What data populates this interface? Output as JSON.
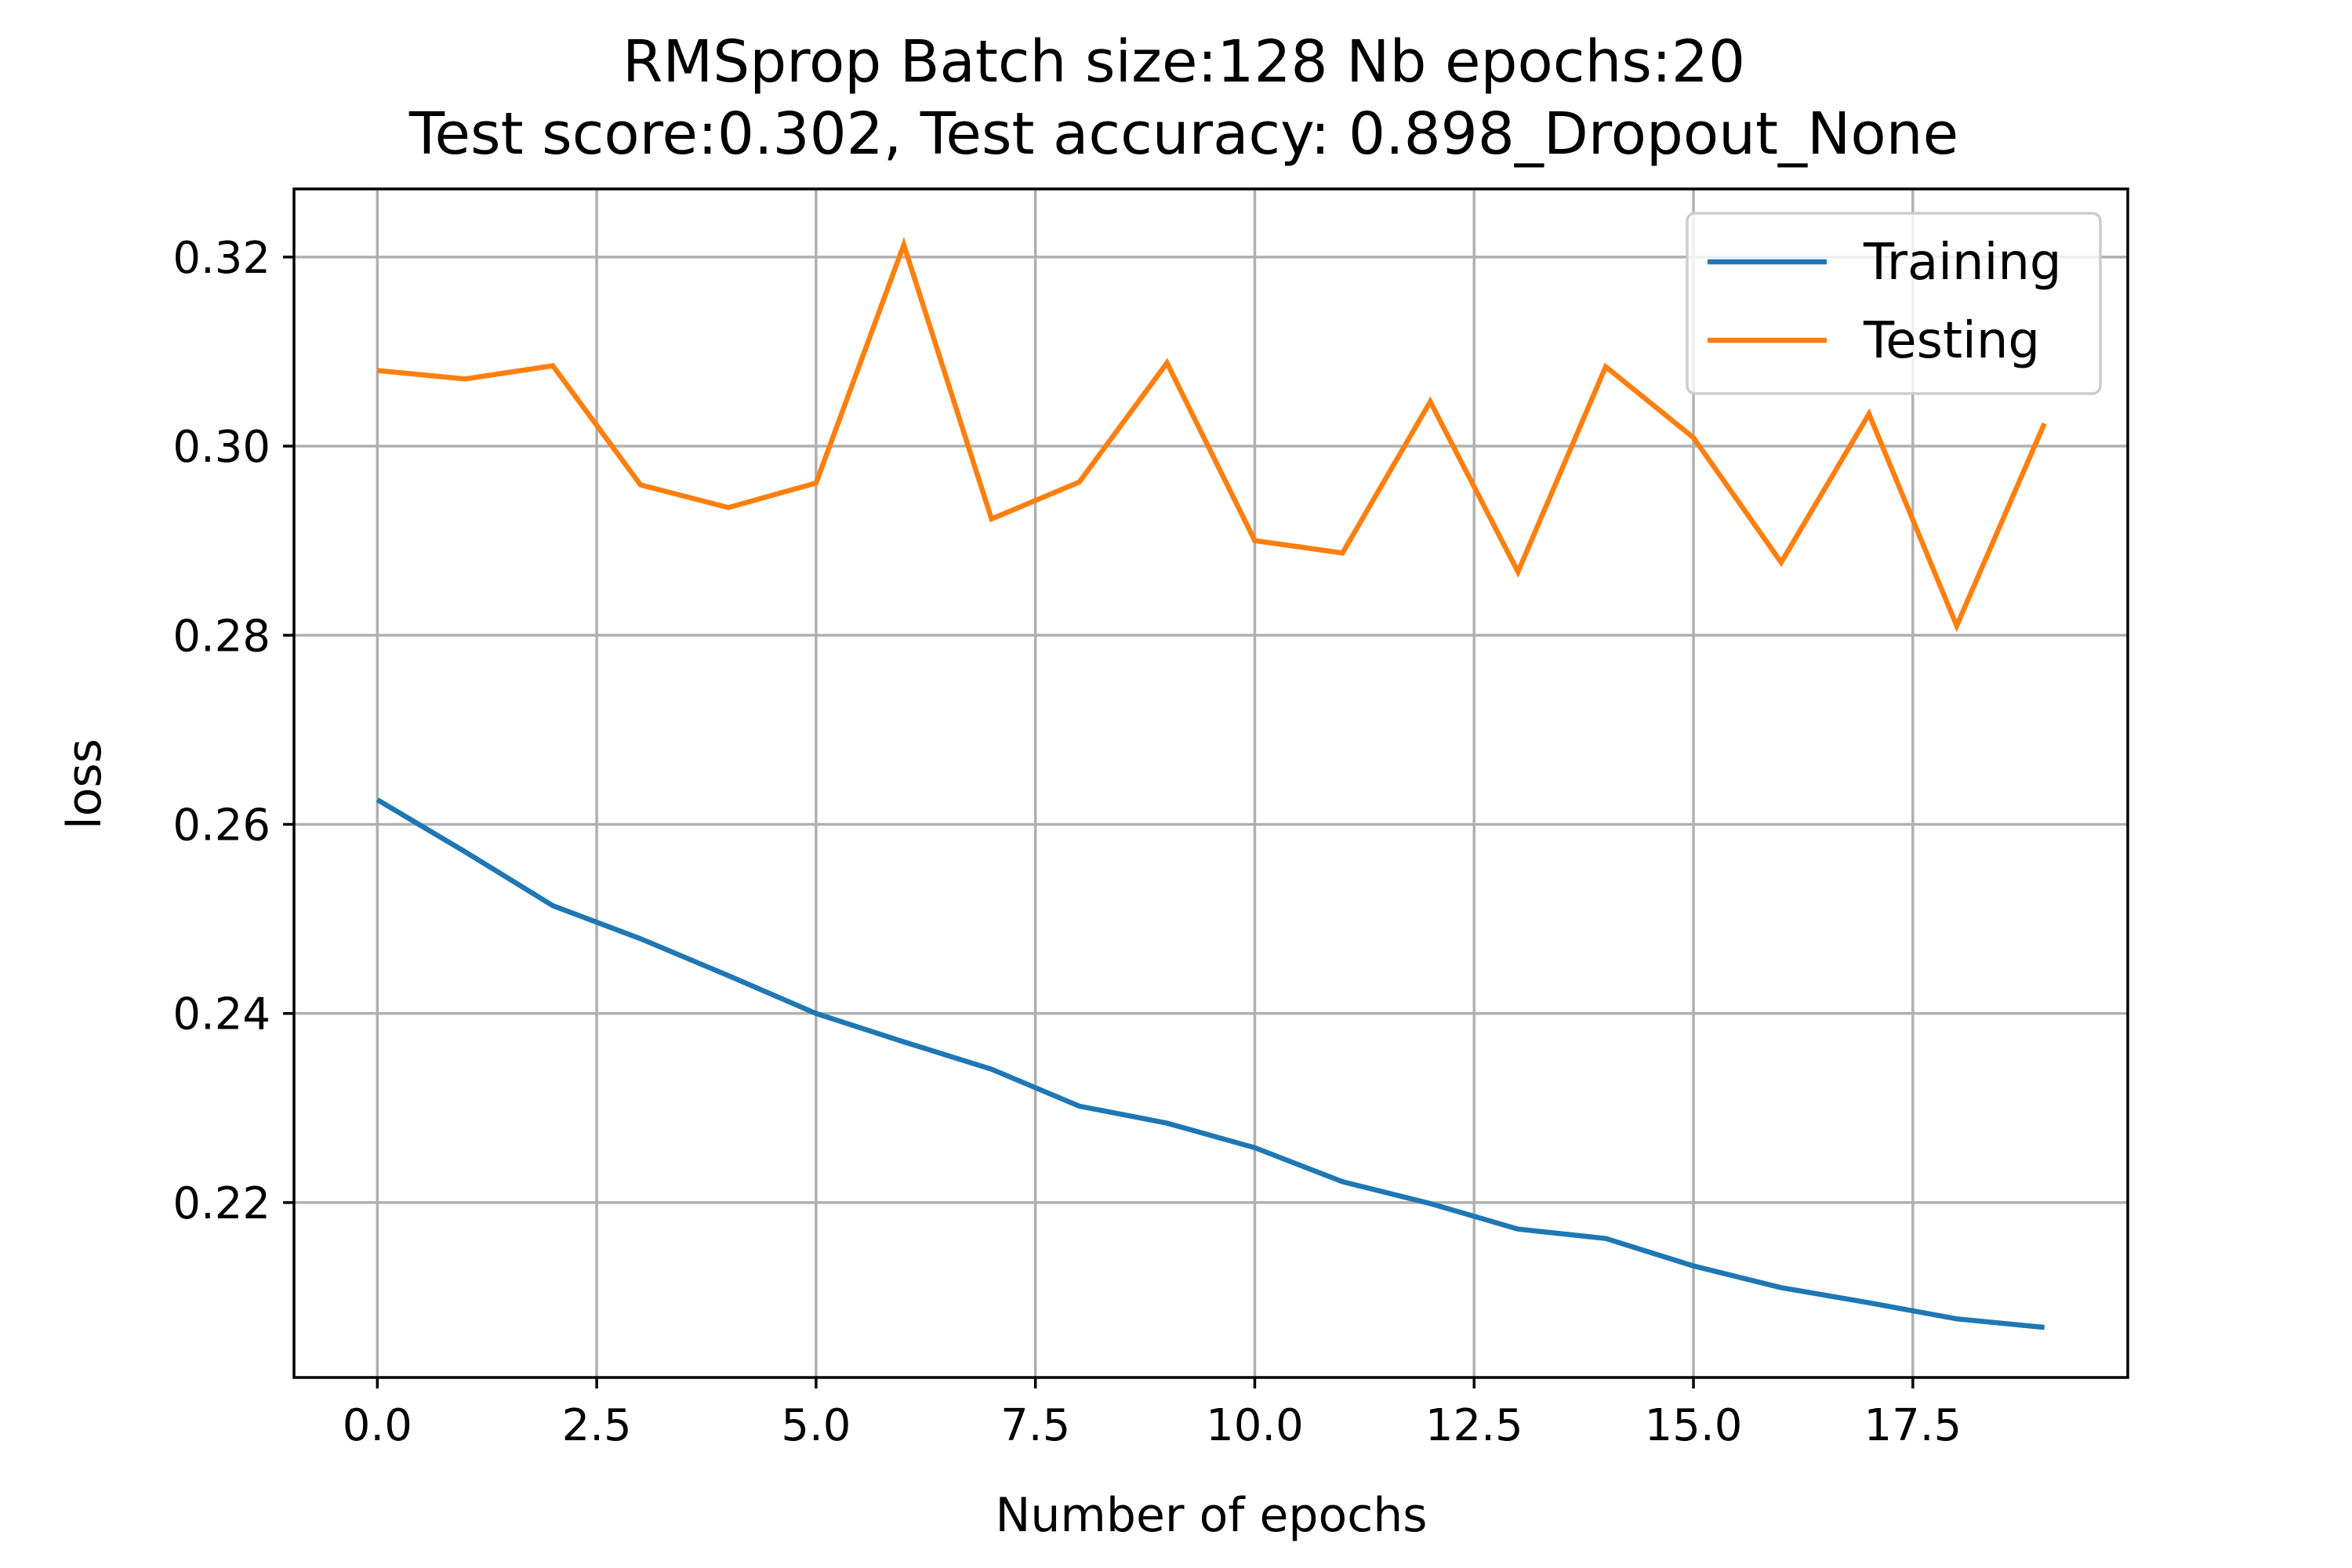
{
  "chart_data": {
    "type": "line",
    "title_line1": "RMSprop Batch size:128 Nb epochs:20",
    "title_line2": "Test score:0.302, Test accuracy: 0.898_Dropout_None",
    "xlabel": "Number of epochs",
    "ylabel": "loss",
    "xlim": [
      -0.95,
      19.95
    ],
    "ylim": [
      0.2015,
      0.3272
    ],
    "xticks": [
      0.0,
      2.5,
      5.0,
      7.5,
      10.0,
      12.5,
      15.0,
      17.5
    ],
    "xtick_labels": [
      "0.0",
      "2.5",
      "5.0",
      "7.5",
      "10.0",
      "12.5",
      "15.0",
      "17.5"
    ],
    "yticks": [
      0.22,
      0.24,
      0.26,
      0.28,
      0.3,
      0.32
    ],
    "ytick_labels": [
      "0.22",
      "0.24",
      "0.26",
      "0.28",
      "0.30",
      "0.32"
    ],
    "grid": true,
    "legend_position": "top-right",
    "x": [
      0,
      1,
      2,
      3,
      4,
      5,
      6,
      7,
      8,
      9,
      10,
      11,
      12,
      13,
      14,
      15,
      16,
      17,
      18,
      19
    ],
    "series": [
      {
        "name": "Training",
        "color": "#1f77b4",
        "values": [
          0.2626,
          0.2571,
          0.2514,
          0.2479,
          0.244,
          0.24,
          0.237,
          0.2341,
          0.2302,
          0.2284,
          0.2258,
          0.2222,
          0.2199,
          0.2172,
          0.2162,
          0.2133,
          0.211,
          0.2094,
          0.2077,
          0.2068
        ]
      },
      {
        "name": "Testing",
        "color": "#ff7f0e",
        "values": [
          0.308,
          0.3071,
          0.3085,
          0.2959,
          0.2935,
          0.2961,
          0.3213,
          0.2923,
          0.2962,
          0.3088,
          0.29,
          0.2887,
          0.3047,
          0.2867,
          0.3084,
          0.3009,
          0.2877,
          0.3034,
          0.281,
          0.3024
        ]
      }
    ]
  }
}
